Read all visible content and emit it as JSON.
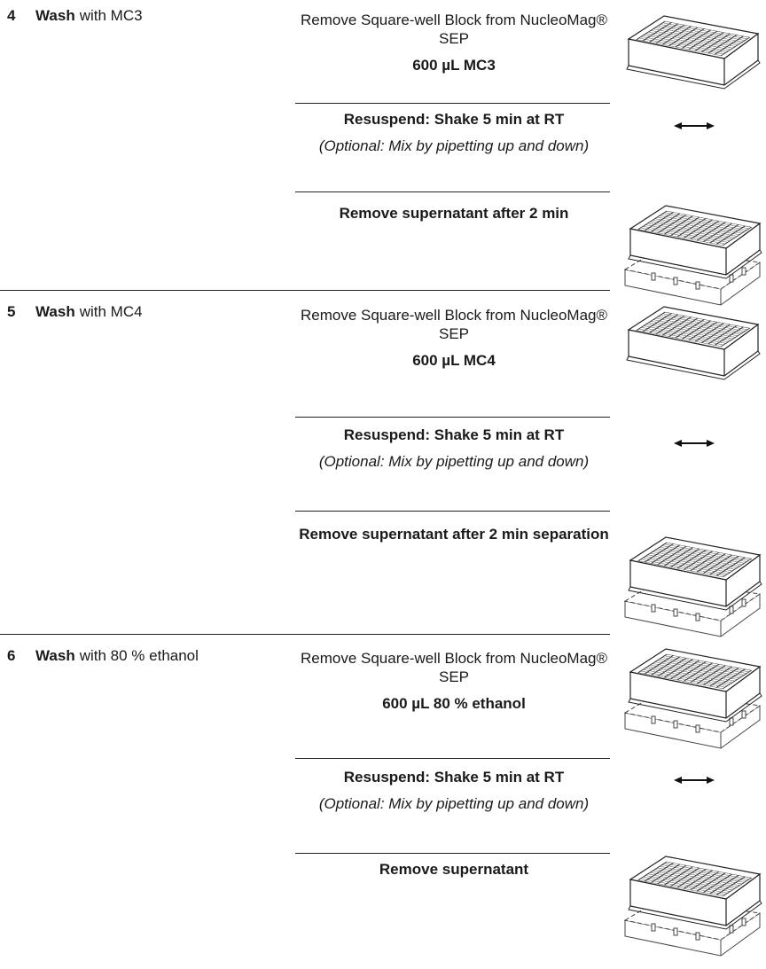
{
  "steps": [
    {
      "number": "4",
      "title_bold": "Wash",
      "title_rest": "with MC3",
      "actions": [
        {
          "lines": [
            {
              "text": "Remove Square-well Block from NucleoMag® SEP",
              "style": "normal"
            },
            {
              "text": "600 µL MC3",
              "style": "bold"
            }
          ]
        },
        {
          "lines": [
            {
              "text": "Resuspend: Shake 5 min at RT",
              "style": "bold"
            },
            {
              "text": "(Optional: Mix by pipetting up and down)",
              "style": "italic"
            }
          ]
        },
        {
          "lines": [
            {
              "text": "Remove supernatant after 2 min",
              "style": "bold"
            }
          ]
        }
      ]
    },
    {
      "number": "5",
      "title_bold": "Wash",
      "title_rest": "with MC4",
      "actions": [
        {
          "lines": [
            {
              "text": "Remove Square-well Block from NucleoMag® SEP",
              "style": "normal"
            },
            {
              "text": "600 µL MC4",
              "style": "bold"
            }
          ]
        },
        {
          "lines": [
            {
              "text": "Resuspend: Shake 5 min at RT",
              "style": "bold"
            },
            {
              "text": "(Optional: Mix by pipetting up and down)",
              "style": "italic"
            }
          ]
        },
        {
          "lines": [
            {
              "text": "Remove supernatant after 2 min separation",
              "style": "bold"
            }
          ]
        }
      ]
    },
    {
      "number": "6",
      "title_bold": "Wash",
      "title_rest": "with 80 % ethanol",
      "actions": [
        {
          "lines": [
            {
              "text": "Remove Square-well Block from NucleoMag® SEP",
              "style": "normal"
            },
            {
              "text": "600 µL 80 % ethanol",
              "style": "bold"
            }
          ]
        },
        {
          "lines": [
            {
              "text": "Resuspend: Shake 5 min at RT",
              "style": "bold"
            },
            {
              "text": "(Optional: Mix by pipetting up and down)",
              "style": "italic"
            }
          ]
        },
        {
          "lines": [
            {
              "text": "Remove supernatant",
              "style": "bold"
            }
          ]
        }
      ]
    }
  ]
}
